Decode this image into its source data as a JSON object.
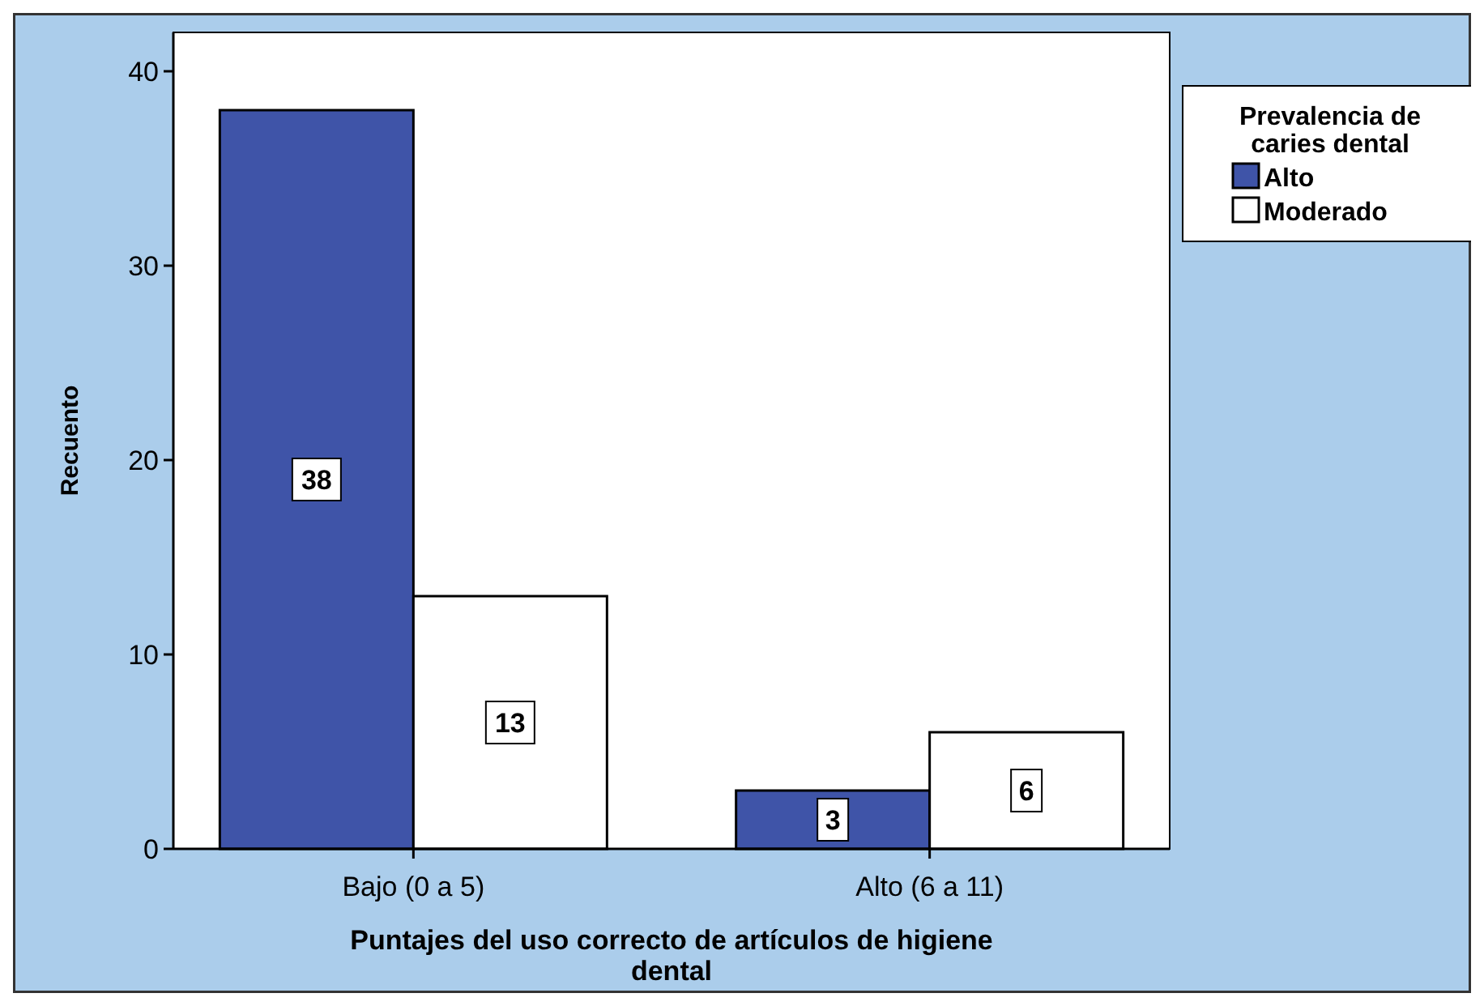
{
  "chart_data": {
    "type": "bar",
    "xlabel": "Puntajes del uso correcto de artículos de higiene dental",
    "ylabel": "Recuento",
    "legend_title": "Prevalencia de caries dental",
    "categories": [
      "Bajo (0 a 5)",
      "Alto (6 a 11)"
    ],
    "series": [
      {
        "name": "Alto",
        "color": "#3f54a8",
        "values": [
          38,
          3
        ]
      },
      {
        "name": "Moderado",
        "color": "#ffffff",
        "values": [
          13,
          6
        ]
      }
    ],
    "ylim": [
      0,
      42
    ],
    "yticks": [
      0,
      10,
      20,
      30,
      40
    ],
    "data_labels": true,
    "legend": "right",
    "grid": false
  }
}
